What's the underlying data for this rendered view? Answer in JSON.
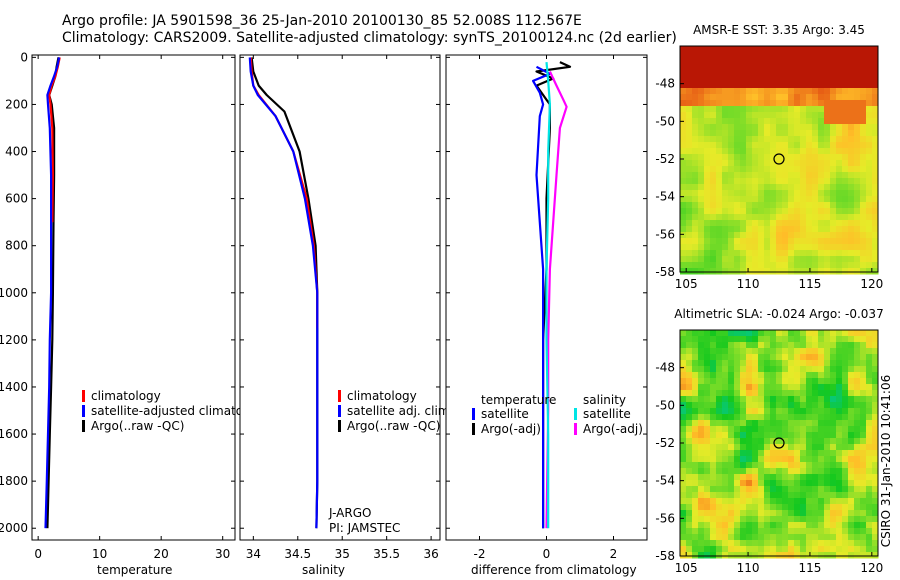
{
  "header": {
    "line1": "Argo profile: JA 5901598_36 25-Jan-2010 20100130_85 52.008S 112.567E",
    "line2": "Climatology: CARS2009. Satellite-adjusted climatology: synTS_20100124.nc (2d earlier)"
  },
  "colors": {
    "clim": "#ff0000",
    "sat": "#0000ff",
    "argo": "#000000",
    "sat_sal": "#00e5e5",
    "argo_sal": "#ff00ff"
  },
  "chart_data": [
    {
      "name": "temperature-profile",
      "type": "line",
      "xlabel": "temperature",
      "ylabel": "",
      "xlim": [
        -1,
        32
      ],
      "ylim": [
        2050,
        -10
      ],
      "xticks": [
        "0",
        "10",
        "20",
        "30"
      ],
      "yticks": [
        "0",
        "200",
        "400",
        "600",
        "800",
        "1000",
        "1200",
        "1400",
        "1600",
        "1800",
        "2000"
      ],
      "legend": [
        "climatology",
        "satellite-adjusted climatology",
        "Argo(..raw -QC)"
      ],
      "series": [
        {
          "name": "climatology",
          "color": "clim",
          "points": [
            [
              3.5,
              0
            ],
            [
              3.2,
              40
            ],
            [
              2.8,
              80
            ],
            [
              2.2,
              120
            ],
            [
              1.8,
              160
            ],
            [
              2.0,
              200
            ],
            [
              2.3,
              300
            ],
            [
              2.4,
              500
            ],
            [
              2.3,
              700
            ]
          ]
        },
        {
          "name": "satellite-adjusted climatology",
          "color": "sat",
          "points": [
            [
              3.4,
              0
            ],
            [
              3.1,
              40
            ],
            [
              2.6,
              80
            ],
            [
              2.0,
              120
            ],
            [
              1.5,
              160
            ],
            [
              1.6,
              200
            ],
            [
              1.9,
              300
            ],
            [
              2.1,
              500
            ],
            [
              2.1,
              700
            ],
            [
              2.1,
              1000
            ],
            [
              1.9,
              1200
            ],
            [
              1.8,
              1400
            ],
            [
              1.6,
              1600
            ],
            [
              1.4,
              1800
            ],
            [
              1.2,
              2000
            ]
          ]
        },
        {
          "name": "Argo(..raw -QC)",
          "color": "argo",
          "points": [
            [
              3.3,
              0
            ],
            [
              3.0,
              40
            ],
            [
              2.8,
              80
            ],
            [
              2.3,
              120
            ],
            [
              1.8,
              160
            ],
            [
              2.2,
              200
            ],
            [
              2.6,
              300
            ],
            [
              2.6,
              500
            ],
            [
              2.5,
              700
            ],
            [
              2.4,
              1000
            ],
            [
              2.3,
              1200
            ],
            [
              2.1,
              1400
            ],
            [
              1.9,
              1600
            ],
            [
              1.7,
              1800
            ],
            [
              1.5,
              2000
            ]
          ]
        }
      ]
    },
    {
      "name": "salinity-profile",
      "type": "line",
      "xlabel": "salinity",
      "xlim": [
        33.85,
        36.1
      ],
      "ylim": [
        2050,
        -10
      ],
      "xticks": [
        "34",
        "34.5",
        "35",
        "35.5",
        "36"
      ],
      "legend": [
        "climatology",
        "satellite adj. clim.",
        "Argo(..raw -QC)"
      ],
      "annotation": [
        "J-ARGO",
        "PI: JAMSTEC"
      ],
      "series": [
        {
          "name": "climatology",
          "color": "clim",
          "points": [
            [
              33.97,
              0
            ],
            [
              33.98,
              60
            ],
            [
              34.0,
              120
            ],
            [
              34.06,
              160
            ],
            [
              34.25,
              250
            ],
            [
              34.45,
              400
            ],
            [
              34.6,
              600
            ],
            [
              34.68,
              800
            ],
            [
              34.72,
              1000
            ],
            [
              34.72,
              1150
            ]
          ]
        },
        {
          "name": "satellite adj. clim.",
          "color": "sat",
          "points": [
            [
              33.96,
              0
            ],
            [
              33.97,
              60
            ],
            [
              34.0,
              120
            ],
            [
              34.05,
              160
            ],
            [
              34.25,
              250
            ],
            [
              34.45,
              400
            ],
            [
              34.58,
              600
            ],
            [
              34.67,
              800
            ],
            [
              34.72,
              1000
            ],
            [
              34.72,
              1200
            ],
            [
              34.72,
              1400
            ],
            [
              34.72,
              1600
            ],
            [
              34.72,
              1800
            ],
            [
              34.71,
              2000
            ]
          ]
        },
        {
          "name": "Argo(..raw -QC)",
          "color": "argo",
          "points": [
            [
              33.98,
              0
            ],
            [
              34.0,
              60
            ],
            [
              34.06,
              120
            ],
            [
              34.15,
              160
            ],
            [
              34.35,
              230
            ],
            [
              34.52,
              400
            ],
            [
              34.62,
              600
            ],
            [
              34.7,
              800
            ],
            [
              34.72,
              1000
            ],
            [
              34.72,
              1200
            ],
            [
              34.72,
              1500
            ],
            [
              34.72,
              1800
            ],
            [
              34.71,
              2000
            ]
          ]
        }
      ]
    },
    {
      "name": "difference-profile",
      "type": "line",
      "xlabel": "difference from climatology",
      "xlim": [
        -3,
        3
      ],
      "ylim": [
        2050,
        -10
      ],
      "xticks": [
        "-2",
        "0",
        "2"
      ],
      "legend_groups": [
        {
          "title": "temperature",
          "items": [
            "satellite",
            "Argo(-adj)"
          ]
        },
        {
          "title": "salinity",
          "items": [
            "satellite",
            "Argo(-adj)"
          ]
        }
      ],
      "series": [
        {
          "name": "temperature satellite",
          "color": "sat",
          "points": [
            [
              -0.3,
              40
            ],
            [
              0.1,
              70
            ],
            [
              -0.4,
              100
            ],
            [
              -0.2,
              150
            ],
            [
              -0.1,
              200
            ],
            [
              -0.2,
              250
            ],
            [
              -0.3,
              500
            ],
            [
              -0.2,
              700
            ],
            [
              -0.1,
              900
            ],
            [
              -0.1,
              1200
            ],
            [
              -0.1,
              1500
            ],
            [
              -0.1,
              1800
            ],
            [
              -0.1,
              2000
            ]
          ]
        },
        {
          "name": "temperature Argo(-adj)",
          "color": "argo",
          "points": [
            [
              0.4,
              20
            ],
            [
              0.7,
              40
            ],
            [
              -0.3,
              60
            ],
            [
              0.2,
              90
            ],
            [
              -0.3,
              120
            ],
            [
              0.0,
              180
            ],
            [
              0.1,
              200
            ],
            [
              0.1,
              300
            ],
            [
              0.0,
              600
            ],
            [
              0.0,
              900
            ],
            [
              -0.1,
              1200
            ],
            [
              -0.1,
              1600
            ],
            [
              -0.1,
              2000
            ]
          ]
        },
        {
          "name": "salinity satellite",
          "color": "sat_sal",
          "points": [
            [
              0.0,
              20
            ],
            [
              0.05,
              100
            ],
            [
              0.1,
              200
            ],
            [
              0.05,
              400
            ],
            [
              0.05,
              600
            ],
            [
              0.0,
              900
            ],
            [
              0.0,
              1200
            ],
            [
              0.05,
              1600
            ],
            [
              0.05,
              2000
            ]
          ]
        },
        {
          "name": "salinity Argo(-adj)",
          "color": "argo_sal",
          "points": [
            [
              0.1,
              60
            ],
            [
              0.3,
              120
            ],
            [
              0.5,
              180
            ],
            [
              0.6,
              210
            ],
            [
              0.4,
              300
            ],
            [
              0.3,
              500
            ],
            [
              0.2,
              700
            ],
            [
              0.1,
              900
            ],
            [
              0.05,
              1200
            ],
            [
              0.05,
              1500
            ],
            [
              0.0,
              2000
            ]
          ]
        }
      ]
    },
    {
      "name": "sst-map",
      "type": "heatmap",
      "title": "AMSR-E SST: 3.35 Argo: 3.45",
      "xlim": [
        104.5,
        120.5
      ],
      "ylim": [
        -58,
        -46
      ],
      "xticks": [
        "105",
        "110",
        "115",
        "120"
      ],
      "yticks": [
        "-48",
        "-50",
        "-52",
        "-54",
        "-56",
        "-58"
      ],
      "marker": [
        112.5,
        -52.0
      ]
    },
    {
      "name": "sla-map",
      "type": "heatmap",
      "title": "Altimetric SLA: -0.024 Argo: -0.037",
      "xlim": [
        104.5,
        120.5
      ],
      "ylim": [
        -58,
        -46
      ],
      "xticks": [
        "105",
        "110",
        "115",
        "120"
      ],
      "yticks": [
        "-48",
        "-50",
        "-52",
        "-54",
        "-56",
        "-58"
      ],
      "marker": [
        112.5,
        -52.0
      ]
    }
  ],
  "footer": {
    "credit": "CSIRO 31-Jan-2010 10:41:06"
  }
}
